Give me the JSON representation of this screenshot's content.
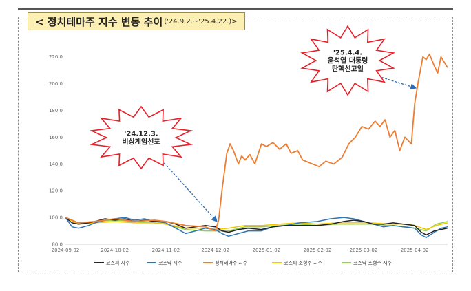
{
  "title": {
    "main": "< 정치테마주 지수 변동 추이",
    "range": "('24.9.2.~'25.4.22.)>"
  },
  "colors": {
    "kospi": "#222222",
    "kosdaq": "#2e75b6",
    "political": "#ed7d31",
    "kospi_small": "#f2c500",
    "kosdaq_small": "#92d050",
    "burst_fill": "#ffffff",
    "burst_stroke": "#e8202a",
    "arrow": "#2f6eb5"
  },
  "annotations": [
    {
      "id": "martial-law",
      "lines": [
        "'24.12.3.",
        "비상계엄선포"
      ]
    },
    {
      "id": "impeachment",
      "lines": [
        "'25.4.4.",
        "윤석열 대통령",
        "탄핵선고일"
      ]
    }
  ],
  "chart_data": {
    "type": "line",
    "title": "정치테마주 지수 변동 추이",
    "xlabel": "",
    "ylabel": "",
    "xticks": [
      "2024-09-02",
      "2024-10-02",
      "2024-11-02",
      "2024-12-02",
      "2025-01-02",
      "2025-02-02",
      "2025-03-02",
      "2025-04-02"
    ],
    "ylim": [
      80,
      225
    ],
    "yticks": [
      "80.0",
      "100.0",
      "120.0",
      "140.0",
      "160.0",
      "180.0",
      "200.0",
      "220.0"
    ],
    "grid": false,
    "legend_position": "bottom",
    "series": [
      {
        "name": "코스피 지수",
        "key": "kospi",
        "x": [
          "2024-09-02",
          "2024-09-06",
          "2024-09-10",
          "2024-09-16",
          "2024-09-20",
          "2024-09-26",
          "2024-10-02",
          "2024-10-08",
          "2024-10-14",
          "2024-10-20",
          "2024-10-26",
          "2024-11-02",
          "2024-11-08",
          "2024-11-14",
          "2024-11-20",
          "2024-11-26",
          "2024-12-02",
          "2024-12-06",
          "2024-12-10",
          "2024-12-16",
          "2024-12-22",
          "2024-12-30",
          "2025-01-06",
          "2025-01-14",
          "2025-01-22",
          "2025-02-02",
          "2025-02-10",
          "2025-02-18",
          "2025-02-24",
          "2025-03-02",
          "2025-03-08",
          "2025-03-14",
          "2025-03-20",
          "2025-03-26",
          "2025-04-02",
          "2025-04-06",
          "2025-04-09",
          "2025-04-14",
          "2025-04-18",
          "2025-04-22"
        ],
        "y": [
          100,
          96,
          95,
          96,
          97,
          99,
          98,
          99,
          97,
          98,
          97,
          97,
          95,
          92,
          93,
          94,
          93,
          90,
          89,
          91,
          92,
          91,
          93,
          94,
          94,
          94,
          95,
          97,
          98,
          97,
          95,
          95,
          96,
          95,
          94,
          89,
          87,
          90,
          91,
          92
        ]
      },
      {
        "name": "코스닥 지수",
        "key": "kosdaq",
        "x": [
          "2024-09-02",
          "2024-09-06",
          "2024-09-10",
          "2024-09-16",
          "2024-09-20",
          "2024-09-26",
          "2024-10-02",
          "2024-10-08",
          "2024-10-14",
          "2024-10-20",
          "2024-10-26",
          "2024-11-02",
          "2024-11-08",
          "2024-11-14",
          "2024-11-20",
          "2024-11-26",
          "2024-12-02",
          "2024-12-06",
          "2024-12-10",
          "2024-12-16",
          "2024-12-22",
          "2024-12-30",
          "2025-01-06",
          "2025-01-14",
          "2025-01-22",
          "2025-02-02",
          "2025-02-10",
          "2025-02-18",
          "2025-02-24",
          "2025-03-02",
          "2025-03-08",
          "2025-03-14",
          "2025-03-20",
          "2025-03-26",
          "2025-04-02",
          "2025-04-06",
          "2025-04-09",
          "2025-04-14",
          "2025-04-18",
          "2025-04-22"
        ],
        "y": [
          100,
          93,
          92,
          94,
          96,
          98,
          99,
          100,
          98,
          99,
          97,
          96,
          92,
          88,
          90,
          92,
          91,
          88,
          86,
          88,
          90,
          90,
          93,
          94,
          96,
          97,
          99,
          100,
          99,
          97,
          95,
          93,
          94,
          93,
          92,
          87,
          85,
          89,
          92,
          93
        ]
      },
      {
        "name": "정치테마주 지수",
        "key": "political",
        "x": [
          "2024-09-02",
          "2024-09-10",
          "2024-09-20",
          "2024-10-02",
          "2024-10-14",
          "2024-10-26",
          "2024-11-02",
          "2024-11-14",
          "2024-11-26",
          "2024-12-02",
          "2024-12-04",
          "2024-12-06",
          "2024-12-09",
          "2024-12-11",
          "2024-12-13",
          "2024-12-16",
          "2024-12-18",
          "2024-12-20",
          "2024-12-23",
          "2024-12-26",
          "2024-12-30",
          "2025-01-02",
          "2025-01-06",
          "2025-01-10",
          "2025-01-14",
          "2025-01-17",
          "2025-01-21",
          "2025-01-24",
          "2025-01-28",
          "2025-02-03",
          "2025-02-07",
          "2025-02-12",
          "2025-02-17",
          "2025-02-21",
          "2025-02-25",
          "2025-03-01",
          "2025-03-05",
          "2025-03-09",
          "2025-03-12",
          "2025-03-15",
          "2025-03-18",
          "2025-03-21",
          "2025-03-24",
          "2025-03-27",
          "2025-03-31",
          "2025-04-02",
          "2025-04-04",
          "2025-04-07",
          "2025-04-09",
          "2025-04-11",
          "2025-04-14",
          "2025-04-16",
          "2025-04-18",
          "2025-04-20",
          "2025-04-22"
        ],
        "y": [
          100,
          96,
          97,
          99,
          97,
          98,
          97,
          94,
          93,
          90,
          98,
          120,
          148,
          155,
          150,
          140,
          146,
          143,
          147,
          140,
          155,
          153,
          156,
          151,
          155,
          148,
          150,
          143,
          141,
          138,
          142,
          140,
          145,
          155,
          160,
          168,
          166,
          172,
          168,
          173,
          160,
          165,
          150,
          160,
          155,
          185,
          200,
          220,
          218,
          222,
          213,
          208,
          220,
          216,
          212
        ]
      },
      {
        "name": "코스피 소형주 지수",
        "key": "kospi_small",
        "x": [
          "2024-09-02",
          "2024-09-10",
          "2024-09-20",
          "2024-10-02",
          "2024-10-14",
          "2024-10-26",
          "2024-11-02",
          "2024-11-14",
          "2024-11-26",
          "2024-12-02",
          "2024-12-10",
          "2024-12-20",
          "2024-12-30",
          "2025-01-10",
          "2025-01-22",
          "2025-02-02",
          "2025-02-14",
          "2025-02-24",
          "2025-03-06",
          "2025-03-18",
          "2025-03-28",
          "2025-04-02",
          "2025-04-09",
          "2025-04-15",
          "2025-04-22"
        ],
        "y": [
          100,
          95,
          96,
          97,
          96,
          96,
          95,
          92,
          92,
          91,
          92,
          94,
          94,
          95,
          96,
          95,
          96,
          96,
          96,
          95,
          95,
          94,
          91,
          94,
          96
        ]
      },
      {
        "name": "코스닥 소형주 지수",
        "key": "kosdaq_small",
        "x": [
          "2024-09-02",
          "2024-09-10",
          "2024-09-20",
          "2024-10-02",
          "2024-10-14",
          "2024-10-26",
          "2024-11-02",
          "2024-11-14",
          "2024-11-26",
          "2024-12-02",
          "2024-12-10",
          "2024-12-20",
          "2024-12-30",
          "2025-01-10",
          "2025-01-22",
          "2025-02-02",
          "2025-02-14",
          "2025-02-24",
          "2025-03-06",
          "2025-03-18",
          "2025-03-28",
          "2025-04-02",
          "2025-04-09",
          "2025-04-15",
          "2025-04-22"
        ],
        "y": [
          100,
          96,
          97,
          98,
          97,
          96,
          95,
          91,
          90,
          90,
          90,
          93,
          93,
          94,
          95,
          94,
          95,
          95,
          95,
          94,
          93,
          92,
          90,
          95,
          97
        ]
      }
    ]
  }
}
